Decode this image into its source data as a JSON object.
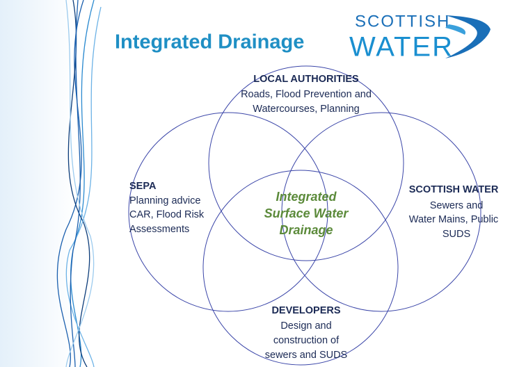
{
  "header": {
    "title": "Integrated Drainage",
    "logo": {
      "line1": "SCOTTISH",
      "line2": "WATER"
    }
  },
  "center": {
    "lines": [
      "Integrated",
      "Surface Water",
      "Drainage"
    ]
  },
  "nodes": [
    {
      "heading": "LOCAL  AUTHORITIES",
      "lines": [
        "Roads,  Flood Prevention and",
        "Watercourses,  Planning"
      ]
    },
    {
      "heading": "SEPA",
      "lines": [
        "Planning advice",
        "CAR, Flood Risk",
        "Assessments"
      ]
    },
    {
      "heading": "SCOTTISH WATER",
      "lines": [
        "Sewers and",
        "Water Mains, Public",
        "SUDS"
      ]
    },
    {
      "heading": "DEVELOPERS",
      "lines": [
        "Design and",
        "construction of",
        "sewers and SUDS"
      ]
    }
  ]
}
